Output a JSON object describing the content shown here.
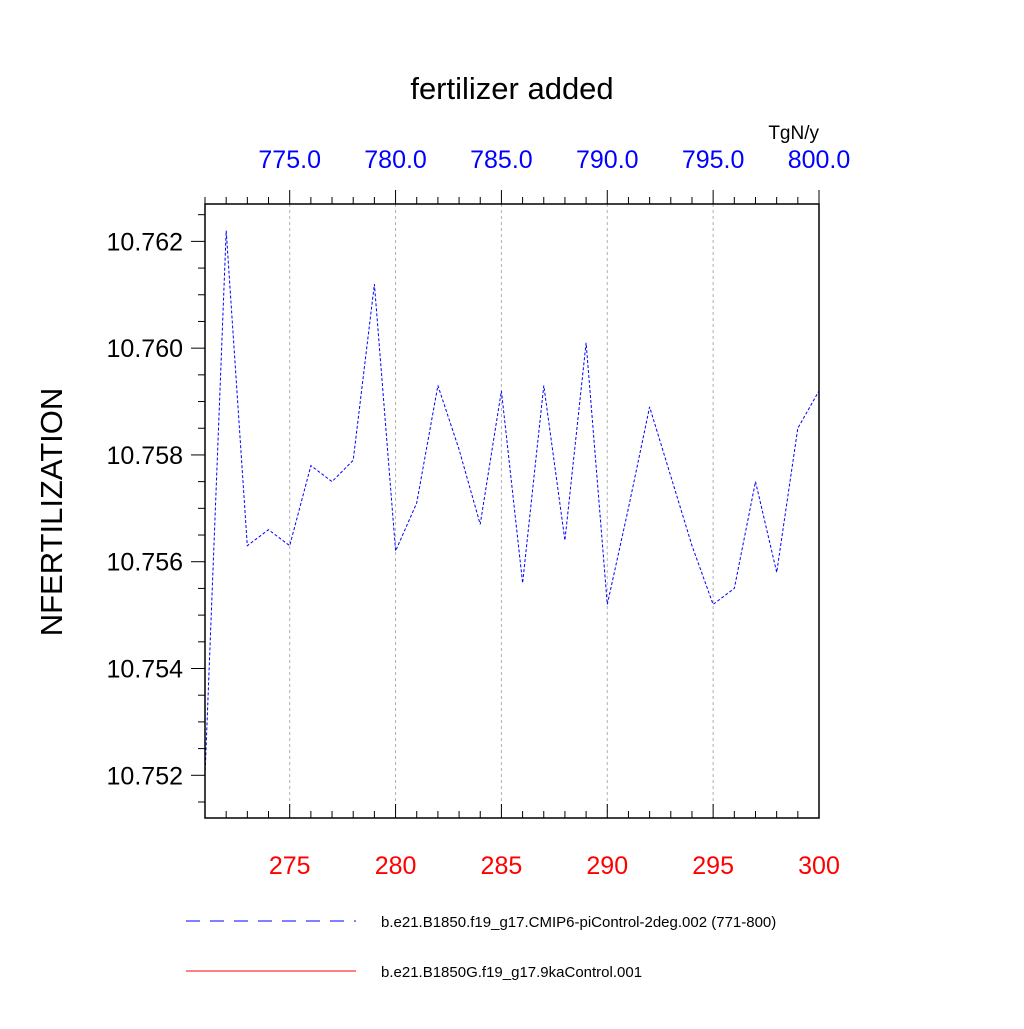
{
  "chart_data": {
    "type": "line",
    "title": "fertilizer added",
    "units": "TgN/y",
    "ylabel": "NFERTILIZATION",
    "xlabel": "",
    "xlim": [
      271,
      300
    ],
    "ylim": [
      10.7512,
      10.7627
    ],
    "x_bottom_ticks": [
      {
        "value": 275,
        "label": "275"
      },
      {
        "value": 280,
        "label": "280"
      },
      {
        "value": 285,
        "label": "285"
      },
      {
        "value": 290,
        "label": "290"
      },
      {
        "value": 295,
        "label": "295"
      },
      {
        "value": 300,
        "label": "300"
      }
    ],
    "x_top_ticks": [
      {
        "value": 275,
        "label": "775.0"
      },
      {
        "value": 280,
        "label": "780.0"
      },
      {
        "value": 285,
        "label": "785.0"
      },
      {
        "value": 290,
        "label": "790.0"
      },
      {
        "value": 295,
        "label": "795.0"
      },
      {
        "value": 300,
        "label": "800.0"
      }
    ],
    "y_ticks": [
      {
        "value": 10.752,
        "label": "10.752"
      },
      {
        "value": 10.754,
        "label": "10.754"
      },
      {
        "value": 10.756,
        "label": "10.756"
      },
      {
        "value": 10.758,
        "label": "10.758"
      },
      {
        "value": 10.76,
        "label": "10.760"
      },
      {
        "value": 10.762,
        "label": "10.762"
      }
    ],
    "grid": "vertical dashed at major bottom ticks",
    "legend_position": "bottom",
    "series": [
      {
        "name": "b.e21.B1850.f19_g17.CMIP6-piControl-2deg.002 (771-800)",
        "color": "#0000ff",
        "style": "dashed",
        "x": [
          271,
          272,
          273,
          274,
          275,
          276,
          277,
          278,
          279,
          280,
          281,
          282,
          283,
          284,
          285,
          286,
          287,
          288,
          289,
          290,
          291,
          292,
          293,
          294,
          295,
          296,
          297,
          298,
          299,
          300
        ],
        "y": [
          10.752,
          10.7622,
          10.7563,
          10.7566,
          10.7563,
          10.7578,
          10.7575,
          10.7579,
          10.7612,
          10.7562,
          10.7571,
          10.7593,
          10.7581,
          10.7567,
          10.7592,
          10.7556,
          10.7593,
          10.7564,
          10.7601,
          10.7552,
          10.757,
          10.7589,
          10.7576,
          10.7563,
          10.7552,
          10.7555,
          10.7575,
          10.7558,
          10.7585,
          10.7592
        ]
      },
      {
        "name": "b.e21.B1850G.f19_g17.9kaControl.001",
        "color": "#ff0000",
        "style": "solid",
        "x": [],
        "y": []
      }
    ]
  }
}
